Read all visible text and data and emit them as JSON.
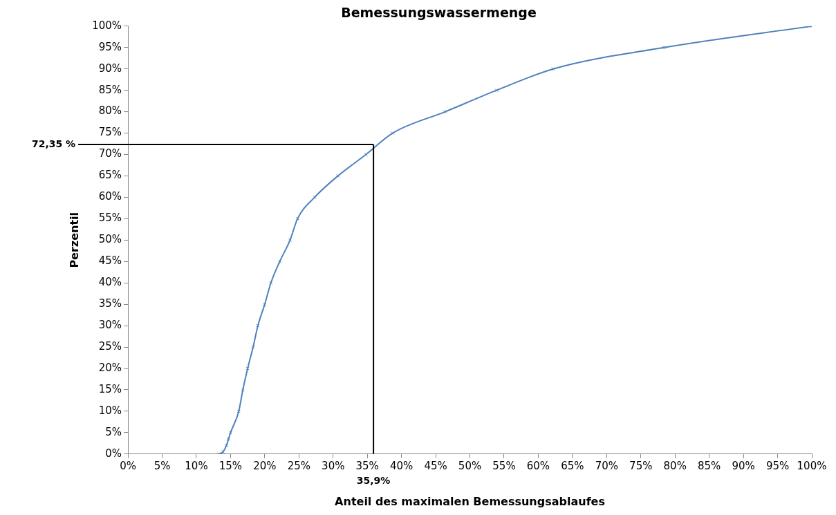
{
  "chart_data": {
    "type": "line",
    "title": "Bemessungswassermenge",
    "xlabel": "Anteil des maximalen Bemessungsablaufes",
    "ylabel": "Perzentil",
    "series": [
      {
        "color": "#4f81bd",
        "x": [
          13.3,
          13.9,
          14.4,
          14.7,
          15,
          16.2,
          16.8,
          17.5,
          18.3,
          19,
          20,
          20.9,
          22.2,
          23.7,
          24.8,
          27.3,
          30.7,
          34.8,
          38.7,
          46.4,
          53.9,
          62.2,
          78.4,
          100
        ],
        "values": [
          0,
          0.5,
          2,
          3.5,
          5,
          10,
          15,
          20,
          25,
          30,
          35,
          40,
          45,
          50,
          55,
          60,
          65,
          70,
          75,
          80,
          85,
          90,
          95,
          100
        ]
      }
    ],
    "xlim": [
      0,
      100
    ],
    "ylim": [
      0,
      100
    ],
    "xticks": [
      {
        "value": 0,
        "label": "0%"
      },
      {
        "value": 5,
        "label": "5%"
      },
      {
        "value": 10,
        "label": "10%"
      },
      {
        "value": 15,
        "label": "15%"
      },
      {
        "value": 20,
        "label": "20%"
      },
      {
        "value": 25,
        "label": "25%"
      },
      {
        "value": 30,
        "label": "30%"
      },
      {
        "value": 35,
        "label": "35%"
      },
      {
        "value": 40,
        "label": "40%"
      },
      {
        "value": 45,
        "label": "45%"
      },
      {
        "value": 50,
        "label": "50%"
      },
      {
        "value": 55,
        "label": "55%"
      },
      {
        "value": 60,
        "label": "60%"
      },
      {
        "value": 65,
        "label": "65%"
      },
      {
        "value": 70,
        "label": "70%"
      },
      {
        "value": 75,
        "label": "75%"
      },
      {
        "value": 80,
        "label": "80%"
      },
      {
        "value": 85,
        "label": "85%"
      },
      {
        "value": 90,
        "label": "90%"
      },
      {
        "value": 95,
        "label": "95%"
      },
      {
        "value": 100,
        "label": "100%"
      }
    ],
    "yticks": [
      {
        "value": 0,
        "label": "0%"
      },
      {
        "value": 5,
        "label": "5%"
      },
      {
        "value": 10,
        "label": "10%"
      },
      {
        "value": 15,
        "label": "15%"
      },
      {
        "value": 20,
        "label": "20%"
      },
      {
        "value": 25,
        "label": "25%"
      },
      {
        "value": 30,
        "label": "30%"
      },
      {
        "value": 35,
        "label": "35%"
      },
      {
        "value": 40,
        "label": "40%"
      },
      {
        "value": 45,
        "label": "45%"
      },
      {
        "value": 50,
        "label": "50%"
      },
      {
        "value": 55,
        "label": "55%"
      },
      {
        "value": 60,
        "label": "60%"
      },
      {
        "value": 65,
        "label": "65%"
      },
      {
        "value": 70,
        "label": "70%"
      },
      {
        "value": 75,
        "label": "75%"
      },
      {
        "value": 80,
        "label": "80%"
      },
      {
        "value": 85,
        "label": "85%"
      },
      {
        "value": 90,
        "label": "90%"
      },
      {
        "value": 95,
        "label": "95%"
      },
      {
        "value": 100,
        "label": "100%"
      }
    ],
    "ref_lines": [
      {
        "axis": "x",
        "value": 35.9,
        "label": "35,9%",
        "color": "#000000"
      },
      {
        "axis": "y",
        "value": 72.35,
        "label": "72,35 %",
        "color": "#000000"
      }
    ],
    "grid": false,
    "legend": false,
    "marker": "cross",
    "line_style": "solid"
  }
}
